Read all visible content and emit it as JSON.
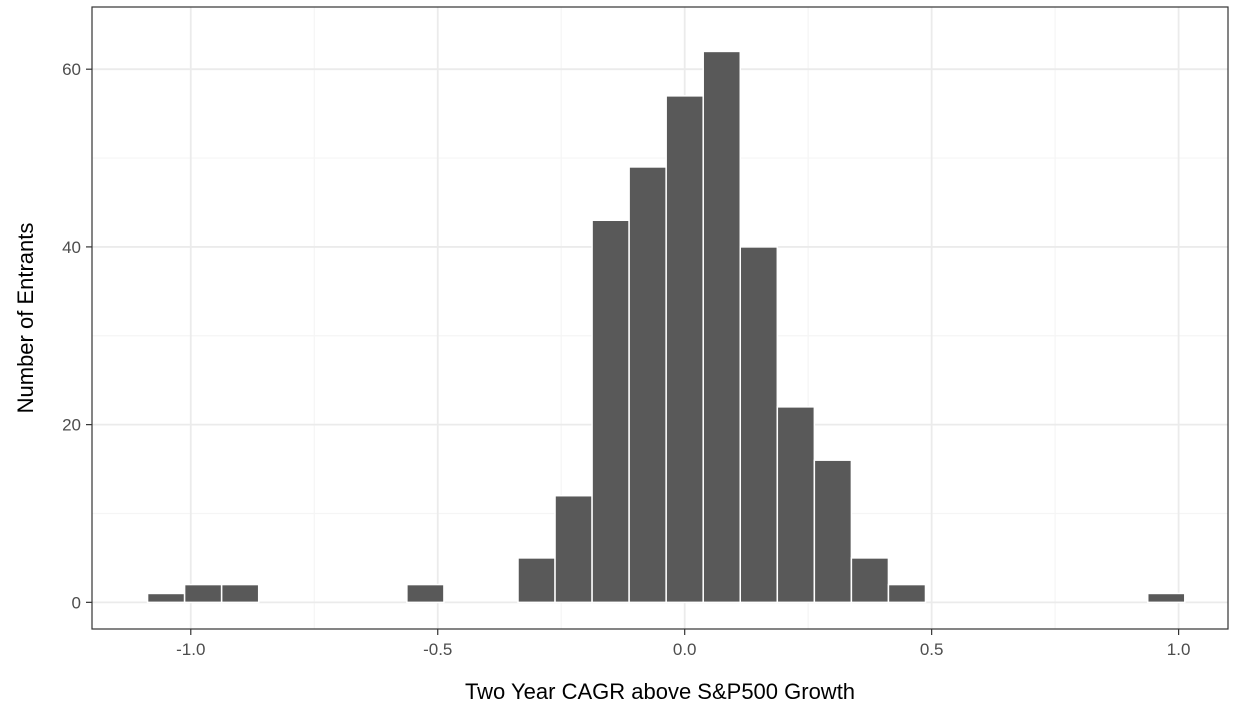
{
  "chart_data": {
    "type": "bar",
    "subtype": "histogram",
    "title": "",
    "xlabel": "Two Year CAGR above S&P500 Growth",
    "ylabel": "Number of Entrants",
    "xlim": [
      -1.2,
      1.1
    ],
    "ylim": [
      -3,
      67
    ],
    "bin_width": 0.075,
    "x_ticks": [
      -1.0,
      -0.5,
      0.0,
      0.5,
      1.0
    ],
    "x_tick_labels": [
      "-1.0",
      "-0.5",
      "0.0",
      "0.5",
      "1.0"
    ],
    "x_minor_ticks": [
      -0.75,
      -0.25,
      0.25,
      0.75
    ],
    "y_ticks": [
      0,
      20,
      40,
      60
    ],
    "y_tick_labels": [
      "0",
      "20",
      "40",
      "60"
    ],
    "y_minor_ticks": [
      10,
      30,
      50
    ],
    "grid": true,
    "theme": "bw",
    "colors": {
      "bar_fill": "#595959",
      "bar_edge": "#ffffff",
      "grid_major": "#ebebeb",
      "grid_minor": "#f5f5f5",
      "panel_border": "#333333"
    },
    "bars": [
      {
        "x": -1.05,
        "count": 1
      },
      {
        "x": -0.975,
        "count": 2
      },
      {
        "x": -0.9,
        "count": 2
      },
      {
        "x": -0.525,
        "count": 2
      },
      {
        "x": -0.3,
        "count": 5
      },
      {
        "x": -0.225,
        "count": 12
      },
      {
        "x": -0.15,
        "count": 43
      },
      {
        "x": -0.075,
        "count": 49
      },
      {
        "x": 0.0,
        "count": 57
      },
      {
        "x": 0.075,
        "count": 62
      },
      {
        "x": 0.15,
        "count": 40
      },
      {
        "x": 0.225,
        "count": 22
      },
      {
        "x": 0.3,
        "count": 16
      },
      {
        "x": 0.375,
        "count": 5
      },
      {
        "x": 0.45,
        "count": 2
      },
      {
        "x": 0.975,
        "count": 1
      }
    ]
  }
}
